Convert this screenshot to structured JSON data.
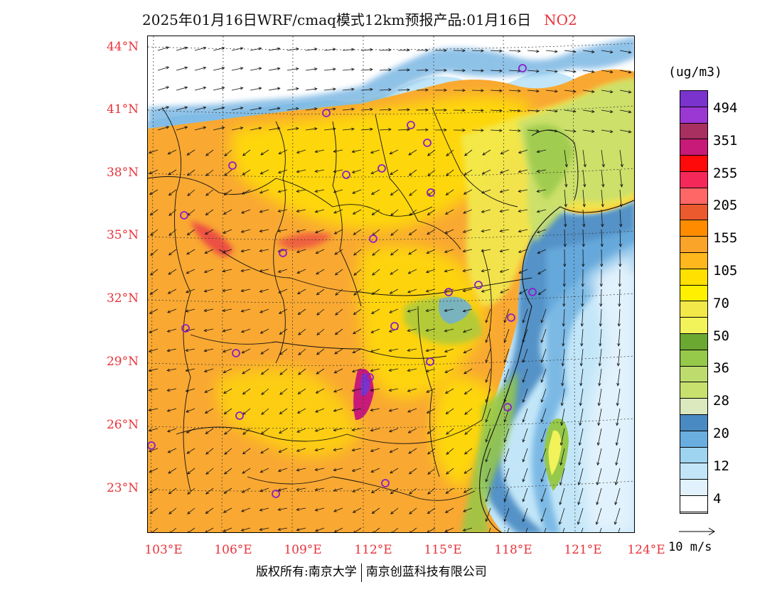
{
  "title": {
    "text": "2025年01月16日WRF/cmaq模式12km预报产品:01月16日",
    "species": "NO2"
  },
  "axes": {
    "lat_labels": [
      "44°N",
      "41°N",
      "38°N",
      "35°N",
      "32°N",
      "29°N",
      "26°N",
      "23°N"
    ],
    "lon_labels": [
      "103°E",
      "106°E",
      "109°E",
      "112°E",
      "115°E",
      "118°E",
      "121°E",
      "124°E"
    ],
    "lat_range": [
      21.0,
      44.5
    ],
    "lon_range": [
      102.9,
      124.0
    ]
  },
  "colorbar": {
    "unit": "(ug/m3)",
    "labels": [
      "494",
      "351",
      "255",
      "205",
      "155",
      "105",
      "70",
      "50",
      "36",
      "28",
      "20",
      "12",
      "4"
    ],
    "colors": [
      "#7a33cc",
      "#9b37d3",
      "#a83060",
      "#c81a78",
      "#ff0a0a",
      "#f5285a",
      "#ff6666",
      "#ea5a2e",
      "#ff8c00",
      "#fba42a",
      "#ffb71e",
      "#ffe000",
      "#fff000",
      "#f2e84a",
      "#f2f25a",
      "#6aa832",
      "#96c84a",
      "#bedc6e",
      "#c8e06e",
      "#dce8be",
      "#4a8ac2",
      "#6aaee0",
      "#9ed4f0",
      "#c2e6f8",
      "#e2f2fc",
      "#ffffff"
    ]
  },
  "wind_reference": {
    "label": "10 m/s"
  },
  "copyright": {
    "left": "版权所有:南京大学",
    "right": "南京创蓝科技有限公司"
  },
  "map_colors": {
    "ocean_deep": "#3a7ec0",
    "ocean_mid": "#6aaee0",
    "ocean_light": "#c2e6f8",
    "low": "#ffffff",
    "green_dark": "#6aa832",
    "green": "#96c84a",
    "green_light": "#c8e06e",
    "yellow": "#ffe600",
    "yellow_light": "#f2ea50",
    "orange": "#f9a832",
    "orange_dark": "#f58a28",
    "red": "#e8334a",
    "magenta": "#c81a78",
    "purple": "#7a33cc"
  }
}
